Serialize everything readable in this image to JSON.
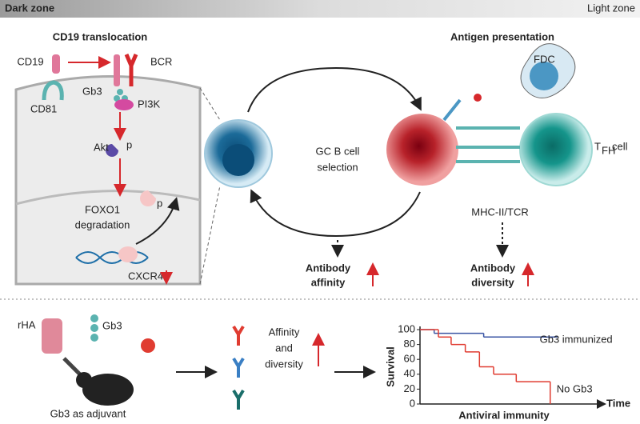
{
  "header": {
    "left": "Dark zone",
    "right": "Light zone"
  },
  "translocation": {
    "title": "CD19 translocation",
    "cd19": "CD19",
    "bcr": "BCR",
    "cd81": "CD81",
    "gb3": "Gb3",
    "pi3k": "PI3K",
    "akt": "Akt",
    "phospho": "p",
    "foxo1": "FOXO1",
    "degradation": "degradation",
    "phospho2": "p",
    "cxcr4": "CXCR4"
  },
  "selection": {
    "line1": "GC B cell",
    "line2": "selection"
  },
  "presentation": {
    "title": "Antigen presentation",
    "fdc": "FDC",
    "tfh_t": "T",
    "tfh_sub": "FH",
    "tfh_cell": "cell",
    "mhc": "MHC-II/TCR"
  },
  "outcomes": {
    "affinity_1": "Antibody",
    "affinity_2": "affinity",
    "diversity_1": "Antibody",
    "diversity_2": "diversity"
  },
  "adjuvant": {
    "rha": "rHA",
    "gb3": "Gb3",
    "caption": "Gb3 as adjuvant",
    "result_1": "Affinity",
    "result_2": "and",
    "result_3": "diversity"
  },
  "chart_data": {
    "type": "line",
    "title": "Antiviral immunity",
    "y_label": "Survival",
    "x_label": "Time",
    "xlim": [
      0,
      13
    ],
    "ylim": [
      0,
      100
    ],
    "yticks": [
      0,
      20,
      40,
      60,
      80,
      100
    ],
    "series": [
      {
        "name": "Gb3 immunized",
        "color": "#3a55a4",
        "x": [
          0,
          1,
          4.5,
          9.7
        ],
        "values": [
          100,
          95,
          90,
          90
        ]
      },
      {
        "name": "No Gb3",
        "color": "#e03c31",
        "x": [
          0,
          1.3,
          2.2,
          3.2,
          4.2,
          5.2,
          6.8,
          9.2,
          9.2
        ],
        "values": [
          100,
          90,
          80,
          70,
          50,
          40,
          30,
          30,
          0
        ]
      }
    ]
  }
}
